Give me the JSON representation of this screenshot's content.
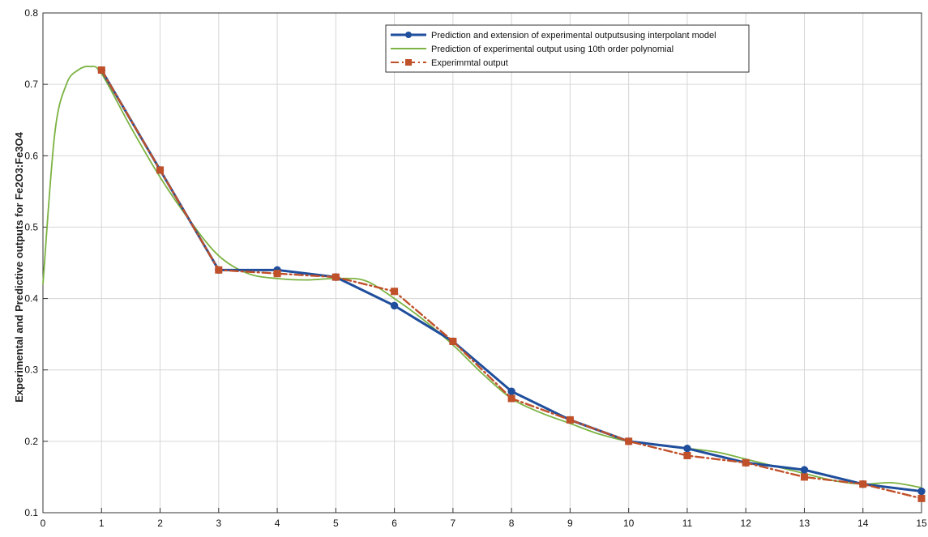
{
  "chart_data": {
    "type": "line",
    "title": "",
    "xlabel": "",
    "ylabel": "Experimental and Predictive outputs for Fe2O3:Fe3O4",
    "xlim": [
      0,
      15
    ],
    "ylim": [
      0.1,
      0.8
    ],
    "x_ticks": [
      0,
      1,
      2,
      3,
      4,
      5,
      6,
      7,
      8,
      9,
      10,
      11,
      12,
      13,
      14,
      15
    ],
    "y_ticks": [
      0.1,
      0.2,
      0.3,
      0.4,
      0.5,
      0.6,
      0.7,
      0.8
    ],
    "grid": true,
    "legend_position": "top-right",
    "series": [
      {
        "name": "Prediction and extension of experimental outputsusing interpolant model",
        "color": "#1f4e9c",
        "style": "solid",
        "marker": "circle",
        "x": [
          1,
          2,
          3,
          4,
          5,
          6,
          7,
          8,
          9,
          10,
          11,
          12,
          13,
          14,
          15
        ],
        "values": [
          0.72,
          0.58,
          0.44,
          0.44,
          0.43,
          0.39,
          0.34,
          0.27,
          0.23,
          0.2,
          0.19,
          0.17,
          0.16,
          0.14,
          0.13
        ]
      },
      {
        "name": "Prediction of experimental output using 10th order polynomial",
        "color": "#7cb342",
        "style": "solid",
        "marker": "none",
        "x": [
          0,
          0.2,
          0.4,
          0.6,
          0.8,
          1,
          1.5,
          2,
          2.5,
          3,
          3.5,
          4,
          4.5,
          5,
          5.5,
          6,
          6.5,
          7,
          7.5,
          8,
          8.5,
          9,
          9.5,
          10,
          10.5,
          11,
          11.5,
          12,
          12.5,
          13,
          13.5,
          14,
          14.5,
          15
        ],
        "values": [
          0.42,
          0.63,
          0.7,
          0.72,
          0.725,
          0.715,
          0.64,
          0.57,
          0.51,
          0.46,
          0.435,
          0.428,
          0.426,
          0.428,
          0.425,
          0.4,
          0.37,
          0.335,
          0.295,
          0.26,
          0.24,
          0.225,
          0.21,
          0.2,
          0.195,
          0.19,
          0.185,
          0.175,
          0.165,
          0.155,
          0.145,
          0.14,
          0.142,
          0.135
        ]
      },
      {
        "name": "Experimmtal output",
        "color": "#c0502a",
        "style": "dashdot",
        "marker": "square",
        "x": [
          1,
          2,
          3,
          4,
          5,
          6,
          7,
          8,
          9,
          10,
          11,
          12,
          13,
          14,
          15
        ],
        "values": [
          0.72,
          0.58,
          0.44,
          0.435,
          0.43,
          0.41,
          0.34,
          0.26,
          0.23,
          0.2,
          0.18,
          0.17,
          0.15,
          0.14,
          0.12
        ]
      }
    ]
  }
}
